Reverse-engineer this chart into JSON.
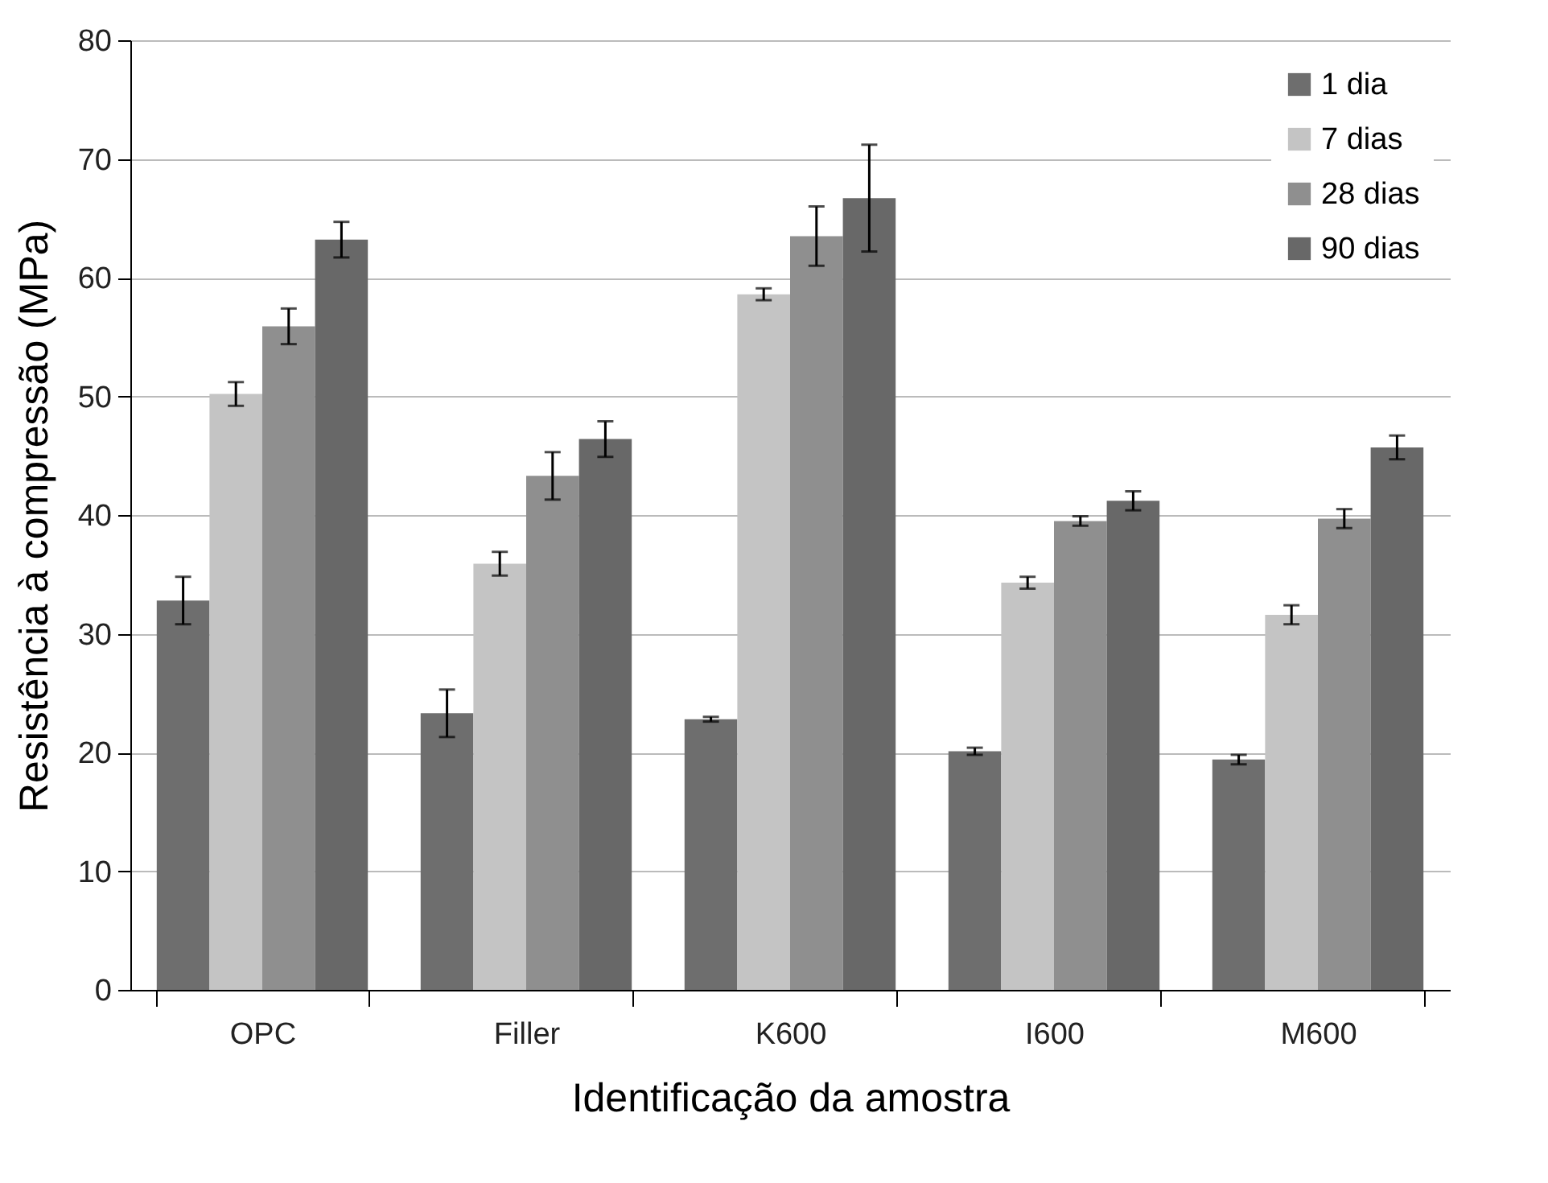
{
  "chart_data": {
    "type": "bar",
    "xlabel": "Identificação da amostra",
    "ylabel": "Resistência à compressão (MPa)",
    "categories": [
      "OPC",
      "Filler",
      "K600",
      "I600",
      "M600"
    ],
    "series": [
      {
        "name": "1 dia",
        "color": "#6e6e6e",
        "values": [
          32.8,
          23.3,
          22.8,
          20.1,
          19.4
        ],
        "errors": [
          2,
          2,
          0.2,
          0.3,
          0.4
        ]
      },
      {
        "name": "7 dias",
        "color": "#c4c4c4",
        "values": [
          50.2,
          35.9,
          58.6,
          34.3,
          31.6
        ],
        "errors": [
          1,
          1,
          0.5,
          0.5,
          0.8
        ]
      },
      {
        "name": "28 dias",
        "color": "#8f8f8f",
        "values": [
          55.9,
          43.3,
          63.5,
          39.5,
          39.7
        ],
        "errors": [
          1.5,
          2,
          2.5,
          0.4,
          0.8
        ]
      },
      {
        "name": "90 dias",
        "color": "#686868",
        "values": [
          63.2,
          46.4,
          66.7,
          41.2,
          45.7
        ],
        "errors": [
          1.5,
          1.5,
          4.5,
          0.8,
          1
        ]
      }
    ],
    "ylim": [
      0,
      80
    ],
    "yticks": [
      0,
      10,
      20,
      30,
      40,
      50,
      60,
      70,
      80
    ],
    "grid": "y",
    "legend": "top right"
  }
}
